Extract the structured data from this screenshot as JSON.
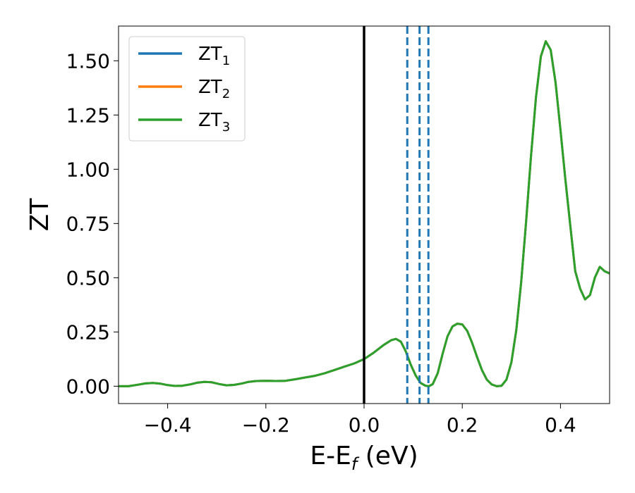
{
  "chart_data": {
    "type": "line",
    "title": "",
    "xlabel_main": "E-E",
    "xlabel_sub": "f",
    "xlabel_unit": " (eV)",
    "ylabel": "ZT",
    "xlim": [
      -0.5,
      0.5
    ],
    "ylim": [
      -0.08,
      1.66
    ],
    "xticks": [
      -0.4,
      -0.2,
      0.0,
      0.2,
      0.4
    ],
    "xtick_labels": [
      "−0.4",
      "−0.2",
      "0.0",
      "0.2",
      "0.4"
    ],
    "yticks": [
      0.0,
      0.25,
      0.5,
      0.75,
      1.0,
      1.25,
      1.5
    ],
    "ytick_labels": [
      "0.00",
      "0.25",
      "0.50",
      "0.75",
      "1.00",
      "1.25",
      "1.50"
    ],
    "grid": false,
    "legend_position": "top-left",
    "x": [
      -0.5,
      -0.48,
      -0.46,
      -0.445,
      -0.43,
      -0.415,
      -0.4,
      -0.385,
      -0.37,
      -0.355,
      -0.34,
      -0.325,
      -0.31,
      -0.295,
      -0.28,
      -0.265,
      -0.25,
      -0.235,
      -0.22,
      -0.2,
      -0.18,
      -0.16,
      -0.14,
      -0.12,
      -0.1,
      -0.08,
      -0.06,
      -0.04,
      -0.02,
      0.0,
      0.02,
      0.04,
      0.055,
      0.065,
      0.075,
      0.085,
      0.095,
      0.105,
      0.115,
      0.125,
      0.132,
      0.14,
      0.15,
      0.16,
      0.17,
      0.18,
      0.19,
      0.2,
      0.21,
      0.22,
      0.23,
      0.24,
      0.25,
      0.26,
      0.27,
      0.28,
      0.29,
      0.3,
      0.31,
      0.32,
      0.33,
      0.34,
      0.35,
      0.36,
      0.37,
      0.38,
      0.39,
      0.4,
      0.41,
      0.42,
      0.43,
      0.44,
      0.45,
      0.46,
      0.47,
      0.48,
      0.49,
      0.5
    ],
    "series": [
      {
        "name_main": "ZT",
        "name_sub": "1",
        "color": "#1f77b4",
        "values": [
          0.0,
          0.0,
          0.007,
          0.013,
          0.015,
          0.012,
          0.005,
          0.001,
          0.002,
          0.008,
          0.016,
          0.02,
          0.018,
          0.01,
          0.004,
          0.006,
          0.012,
          0.02,
          0.024,
          0.025,
          0.024,
          0.025,
          0.032,
          0.04,
          0.048,
          0.06,
          0.075,
          0.09,
          0.105,
          0.125,
          0.155,
          0.19,
          0.212,
          0.218,
          0.205,
          0.16,
          0.1,
          0.05,
          0.015,
          0.002,
          0.0,
          0.01,
          0.06,
          0.15,
          0.23,
          0.275,
          0.288,
          0.285,
          0.255,
          0.2,
          0.135,
          0.075,
          0.03,
          0.008,
          0.0,
          0.002,
          0.03,
          0.11,
          0.26,
          0.48,
          0.76,
          1.06,
          1.33,
          1.52,
          1.59,
          1.55,
          1.4,
          1.18,
          0.95,
          0.74,
          0.53,
          0.45,
          0.4,
          0.42,
          0.5,
          0.55,
          0.53,
          0.52
        ]
      },
      {
        "name_main": "ZT",
        "name_sub": "2",
        "color": "#ff7f0e",
        "values": [
          0.0,
          0.0,
          0.007,
          0.013,
          0.015,
          0.012,
          0.005,
          0.001,
          0.002,
          0.008,
          0.016,
          0.02,
          0.018,
          0.01,
          0.004,
          0.006,
          0.012,
          0.02,
          0.024,
          0.025,
          0.024,
          0.025,
          0.032,
          0.04,
          0.048,
          0.06,
          0.075,
          0.09,
          0.105,
          0.125,
          0.155,
          0.19,
          0.212,
          0.218,
          0.205,
          0.16,
          0.1,
          0.05,
          0.015,
          0.002,
          0.0,
          0.01,
          0.06,
          0.15,
          0.23,
          0.275,
          0.288,
          0.285,
          0.255,
          0.2,
          0.135,
          0.075,
          0.03,
          0.008,
          0.0,
          0.002,
          0.03,
          0.11,
          0.26,
          0.48,
          0.76,
          1.06,
          1.33,
          1.52,
          1.59,
          1.55,
          1.4,
          1.18,
          0.95,
          0.74,
          0.53,
          0.45,
          0.4,
          0.42,
          0.5,
          0.55,
          0.53,
          0.52
        ]
      },
      {
        "name_main": "ZT",
        "name_sub": "3",
        "color": "#2ca02c",
        "values": [
          0.0,
          0.0,
          0.007,
          0.013,
          0.015,
          0.012,
          0.005,
          0.001,
          0.002,
          0.008,
          0.016,
          0.02,
          0.018,
          0.01,
          0.004,
          0.006,
          0.012,
          0.02,
          0.024,
          0.025,
          0.024,
          0.025,
          0.032,
          0.04,
          0.048,
          0.06,
          0.075,
          0.09,
          0.105,
          0.125,
          0.155,
          0.19,
          0.212,
          0.218,
          0.205,
          0.16,
          0.1,
          0.05,
          0.015,
          0.002,
          0.0,
          0.01,
          0.06,
          0.15,
          0.23,
          0.275,
          0.288,
          0.285,
          0.255,
          0.2,
          0.135,
          0.075,
          0.03,
          0.008,
          0.0,
          0.002,
          0.03,
          0.11,
          0.26,
          0.48,
          0.76,
          1.06,
          1.33,
          1.52,
          1.59,
          1.55,
          1.4,
          1.18,
          0.95,
          0.74,
          0.53,
          0.45,
          0.4,
          0.42,
          0.5,
          0.55,
          0.53,
          0.52
        ]
      }
    ],
    "vertical_lines": [
      {
        "x": 0.0,
        "style": "solid",
        "color": "#000000"
      },
      {
        "x": 0.088,
        "style": "dashed",
        "color": "#1f77b4"
      },
      {
        "x": 0.113,
        "style": "dashed",
        "color": "#1f77b4"
      },
      {
        "x": 0.131,
        "style": "dashed",
        "color": "#1f77b4"
      }
    ]
  }
}
